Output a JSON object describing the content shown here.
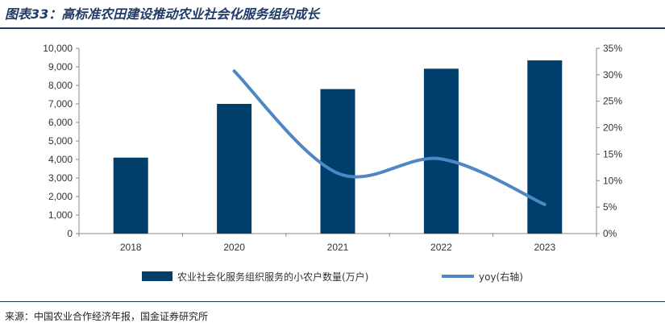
{
  "header": {
    "title": "图表33：高标准农田建设推动农业社会化服务组织成长"
  },
  "footer": {
    "source": "来源：中国农业合作经济年报，国金证券研究所"
  },
  "colors": {
    "bar": "#003f6b",
    "line": "#4f86c6",
    "rule": "#1f3b66"
  },
  "chart_data": {
    "type": "bar",
    "categories": [
      "2018",
      "2020",
      "2021",
      "2022",
      "2023"
    ],
    "series": [
      {
        "name": "农业社会化服务组织服务的小农户数量(万户)",
        "type": "bar",
        "axis": "left",
        "values": [
          4100,
          7000,
          7800,
          8900,
          9350
        ]
      },
      {
        "name": "yoy(右轴)",
        "type": "line",
        "axis": "right",
        "values": [
          null,
          30.7,
          11.4,
          14.1,
          5.5
        ]
      }
    ],
    "y_left": {
      "lim": [
        0,
        10000
      ],
      "ticks": [
        "0",
        "1,000",
        "2,000",
        "3,000",
        "4,000",
        "5,000",
        "6,000",
        "7,000",
        "8,000",
        "9,000",
        "10,000"
      ]
    },
    "y_right": {
      "lim": [
        0,
        35
      ],
      "ticks": [
        "0%",
        "5%",
        "10%",
        "15%",
        "20%",
        "25%",
        "30%",
        "35%"
      ]
    },
    "grid": false,
    "legend_position": "bottom"
  }
}
